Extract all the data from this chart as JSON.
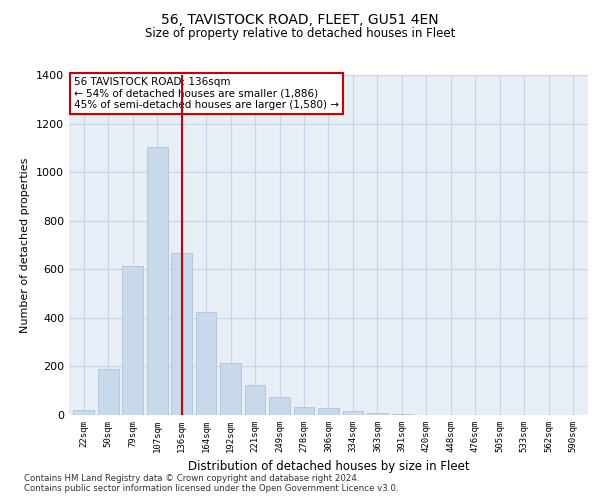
{
  "title1": "56, TAVISTOCK ROAD, FLEET, GU51 4EN",
  "title2": "Size of property relative to detached houses in Fleet",
  "xlabel": "Distribution of detached houses by size in Fleet",
  "ylabel": "Number of detached properties",
  "categories": [
    "22sqm",
    "50sqm",
    "79sqm",
    "107sqm",
    "136sqm",
    "164sqm",
    "192sqm",
    "221sqm",
    "249sqm",
    "278sqm",
    "306sqm",
    "334sqm",
    "363sqm",
    "391sqm",
    "420sqm",
    "448sqm",
    "476sqm",
    "505sqm",
    "533sqm",
    "562sqm",
    "590sqm"
  ],
  "values": [
    20,
    190,
    615,
    1105,
    665,
    425,
    215,
    125,
    75,
    35,
    30,
    15,
    8,
    5,
    2,
    1,
    0,
    0,
    0,
    0,
    0
  ],
  "bar_color": "#c9d9ec",
  "bar_edge_color": "#b0c4d8",
  "vline_x_idx": 4,
  "vline_color": "#cc0000",
  "annotation_text": "56 TAVISTOCK ROAD: 136sqm\n← 54% of detached houses are smaller (1,886)\n45% of semi-detached houses are larger (1,580) →",
  "annotation_box_facecolor": "#ffffff",
  "annotation_box_edgecolor": "#cc0000",
  "ylim": [
    0,
    1400
  ],
  "yticks": [
    0,
    200,
    400,
    600,
    800,
    1000,
    1200,
    1400
  ],
  "grid_color": "#c8d4e4",
  "plot_bg_color": "#e8eef6",
  "footer1": "Contains HM Land Registry data © Crown copyright and database right 2024.",
  "footer2": "Contains public sector information licensed under the Open Government Licence v3.0."
}
